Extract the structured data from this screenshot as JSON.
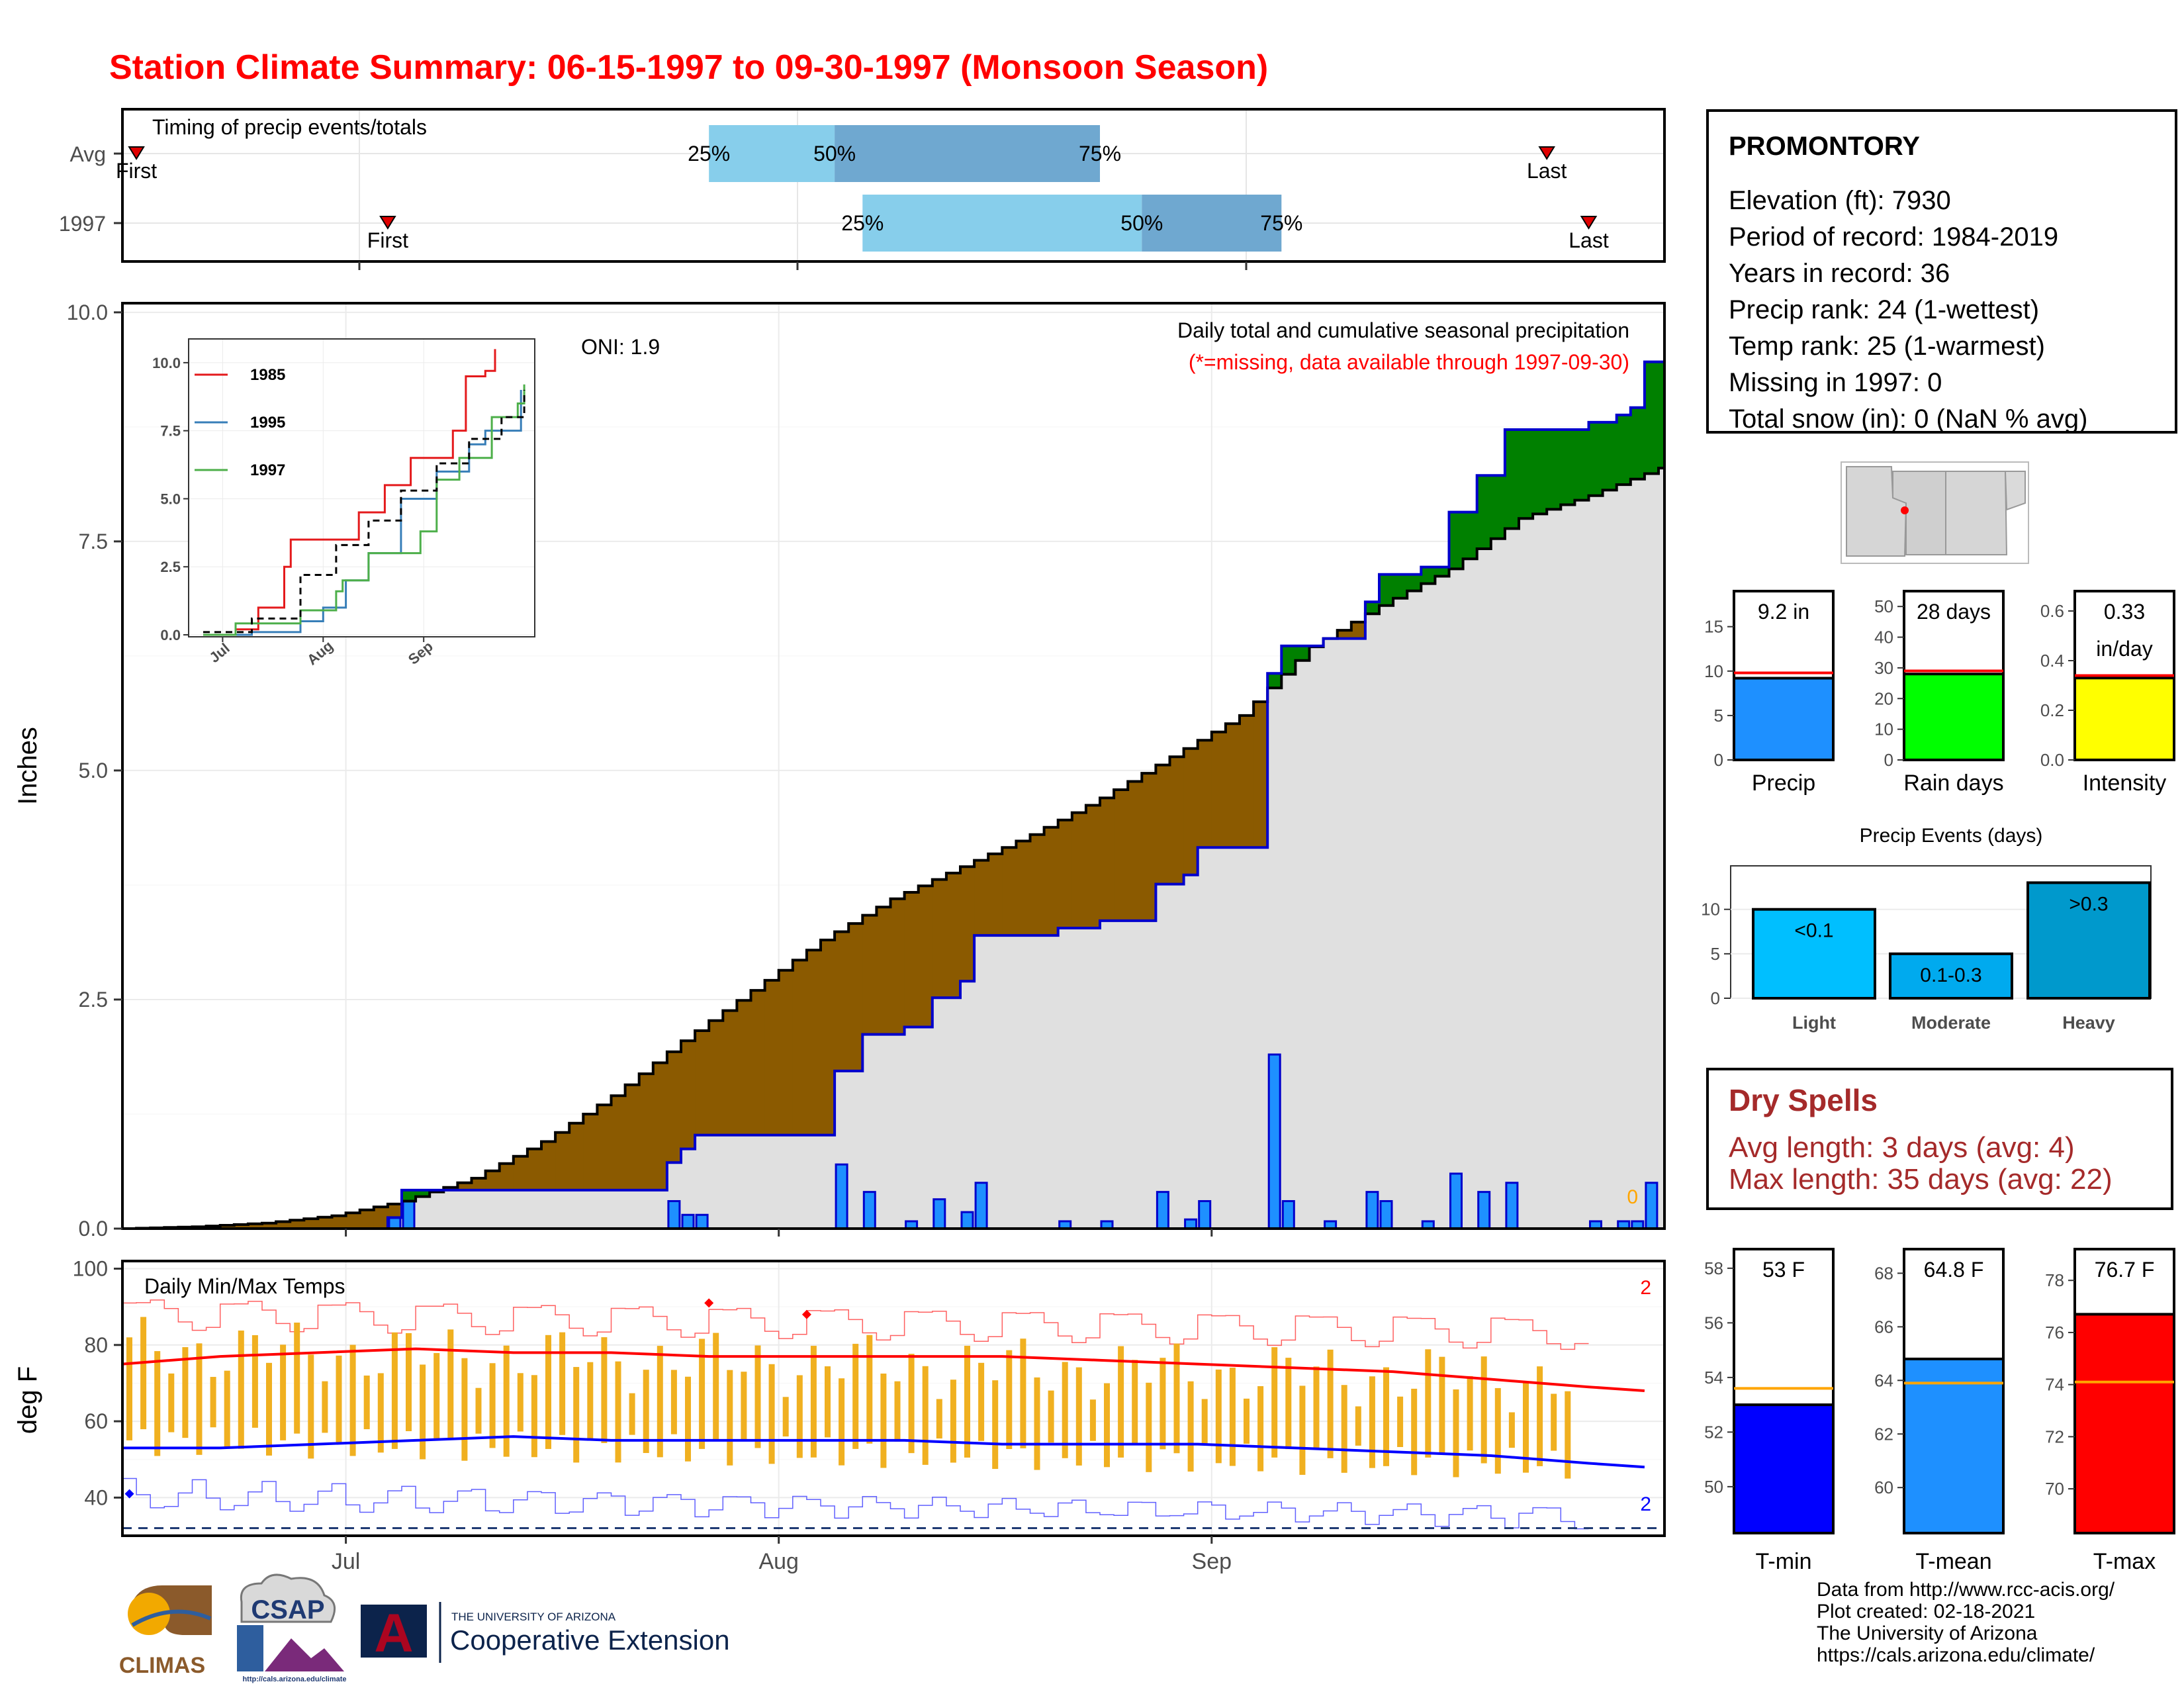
{
  "title": "Station Climate Summary: 06-15-1997 to 09-30-1997 (Monsoon Season)",
  "timing": {
    "label": "Timing of precip events/totals",
    "rows": [
      "Avg",
      "1997"
    ],
    "first_label": "First",
    "last_label": "Last",
    "pct_labels": [
      "25%",
      "50%",
      "75%"
    ],
    "avg": {
      "first": "1997-06-16",
      "p25": "1997-07-27",
      "p50": "1997-08-05",
      "p75": "1997-08-24",
      "last": "1997-09-25"
    },
    "y1997": {
      "first": "1997-07-04",
      "p25": "1997-08-07",
      "p50": "1997-08-27",
      "p75": "1997-09-06",
      "last": "1997-09-28"
    }
  },
  "precip_panel": {
    "ylabel": "Inches",
    "yticks": [
      "0.0",
      "2.5",
      "5.0",
      "7.5",
      "10.0"
    ],
    "oni": "ONI: 1.9",
    "subtitle": "Daily total and cumulative seasonal precipitation",
    "note": "(*=missing, data available through 1997-09-30)",
    "missing_count": "0"
  },
  "temp_panel": {
    "label": "Daily Min/Max Temps",
    "ylabel": "deg F",
    "yticks": [
      "40",
      "60",
      "80",
      "100"
    ],
    "record_high_count": "2",
    "record_low_count": "2"
  },
  "xaxis": {
    "ticks": [
      "Jul",
      "Aug",
      "Sep"
    ]
  },
  "inset": {
    "yticks": [
      "0.0",
      "2.5",
      "5.0",
      "7.5",
      "10.0"
    ],
    "xticks": [
      "Jul",
      "Aug",
      "Sep"
    ],
    "legend": [
      "1985",
      "1995",
      "1997"
    ]
  },
  "station": {
    "name": "PROMONTORY",
    "lines": [
      "Elevation (ft): 7930",
      "Period of record: 1984-2019",
      "Years in record: 36",
      "Precip rank: 24 (1-wettest)",
      "Temp rank: 25 (1-warmest)",
      "Missing in 1997: 0",
      "Total snow (in): 0 (NaN % avg)"
    ]
  },
  "summary_bars": [
    {
      "name": "Precip",
      "label_lines": [
        "9.2 in"
      ],
      "yticks": [
        "0",
        "5",
        "10",
        "15"
      ]
    },
    {
      "name": "Rain days",
      "label_lines": [
        "28 days"
      ],
      "yticks": [
        "0",
        "10",
        "20",
        "30",
        "40",
        "50"
      ]
    },
    {
      "name": "Intensity",
      "label_lines": [
        "0.33",
        "in/day"
      ],
      "yticks": [
        "0.0",
        "0.2",
        "0.4",
        "0.6"
      ]
    }
  ],
  "events": {
    "title": "Precip Events (days)",
    "yticks": [
      "0",
      "5",
      "10"
    ],
    "categories": [
      "Light",
      "Moderate",
      "Heavy"
    ],
    "labels": [
      "<0.1",
      "0.1-0.3",
      ">0.3"
    ]
  },
  "dry_spells": {
    "title": "Dry Spells",
    "avg_line": "Avg length: 3 days (avg: 4)",
    "max_line": "Max length: 35 days (avg: 22)"
  },
  "temp_bars": [
    {
      "name": "T-min",
      "label": "53 F",
      "yticks": [
        "50",
        "52",
        "54",
        "56",
        "58"
      ]
    },
    {
      "name": "T-mean",
      "label": "64.8 F",
      "yticks": [
        "60",
        "62",
        "64",
        "66",
        "68"
      ]
    },
    {
      "name": "T-max",
      "label": "76.7 F",
      "yticks": [
        "70",
        "72",
        "74",
        "76",
        "78"
      ]
    }
  ],
  "credits": [
    "Data from http://www.rcc-acis.org/",
    "Plot created: 02-18-2021",
    "The University of Arizona",
    "https://cals.arizona.edu/climate/"
  ],
  "logos": {
    "climas": "CLIMAS",
    "csap": "CSAP",
    "csap_url": "http://cals.arizona.edu/climate",
    "ua_small": "THE UNIVERSITY OF ARIZONA",
    "ua_big": "Cooperative Extension",
    "ua_letter": "A"
  },
  "colors": {
    "title": "#ff0000",
    "deficit": "#8b5a00",
    "surplus": "#008000",
    "daily_bar": "#1e90ff",
    "avg_cum_fill": "#e0e0e0",
    "tmax": "#ff0000",
    "tmin": "#0000ff",
    "temp_bar": "#f0b020",
    "precip_bar": "#1e90ff",
    "raindays_bar": "#00ff00",
    "intensity_bar": "#ffff00",
    "events_light": "#00bfff",
    "events_moderate": "#00aaee",
    "events_heavy": "#0099cc",
    "dry_spell": "#a52a2a"
  },
  "chart_data": [
    {
      "type": "area",
      "title": "Daily total and cumulative seasonal precipitation",
      "ylabel": "Inches",
      "ylim": [
        0,
        10
      ],
      "start": "1997-06-15",
      "end": "1997-09-30",
      "daily_1997": [
        {
          "date": "1997-07-04",
          "value": 0.12
        },
        {
          "date": "1997-07-05",
          "value": 0.3
        },
        {
          "date": "1997-07-24",
          "value": 0.3
        },
        {
          "date": "1997-07-25",
          "value": 0.15
        },
        {
          "date": "1997-07-26",
          "value": 0.15
        },
        {
          "date": "1997-08-05",
          "value": 0.7
        },
        {
          "date": "1997-08-07",
          "value": 0.4
        },
        {
          "date": "1997-08-10",
          "value": 0.08
        },
        {
          "date": "1997-08-12",
          "value": 0.32
        },
        {
          "date": "1997-08-14",
          "value": 0.18
        },
        {
          "date": "1997-08-15",
          "value": 0.5
        },
        {
          "date": "1997-08-21",
          "value": 0.08
        },
        {
          "date": "1997-08-24",
          "value": 0.08
        },
        {
          "date": "1997-08-28",
          "value": 0.4
        },
        {
          "date": "1997-08-30",
          "value": 0.1
        },
        {
          "date": "1997-08-31",
          "value": 0.3
        },
        {
          "date": "1997-09-05",
          "value": 1.9
        },
        {
          "date": "1997-09-06",
          "value": 0.3
        },
        {
          "date": "1997-09-09",
          "value": 0.08
        },
        {
          "date": "1997-09-12",
          "value": 0.4
        },
        {
          "date": "1997-09-13",
          "value": 0.3
        },
        {
          "date": "1997-09-16",
          "value": 0.08
        },
        {
          "date": "1997-09-18",
          "value": 0.6
        },
        {
          "date": "1997-09-20",
          "value": 0.4
        },
        {
          "date": "1997-09-22",
          "value": 0.5
        },
        {
          "date": "1997-09-28",
          "value": 0.08
        },
        {
          "date": "1997-09-30",
          "value": 0.08
        },
        {
          "date": "1997-10-01",
          "value": 0.08
        },
        {
          "date": "1997-10-02",
          "value": 0.5
        }
      ],
      "avg_cumulative": [
        {
          "date": "1997-06-15",
          "value": 0.0
        },
        {
          "date": "1997-06-20",
          "value": 0.02
        },
        {
          "date": "1997-06-25",
          "value": 0.06
        },
        {
          "date": "1997-06-30",
          "value": 0.14
        },
        {
          "date": "1997-07-05",
          "value": 0.3
        },
        {
          "date": "1997-07-10",
          "value": 0.55
        },
        {
          "date": "1997-07-15",
          "value": 0.95
        },
        {
          "date": "1997-07-20",
          "value": 1.45
        },
        {
          "date": "1997-07-25",
          "value": 2.05
        },
        {
          "date": "1997-07-30",
          "value": 2.6
        },
        {
          "date": "1997-08-04",
          "value": 3.15
        },
        {
          "date": "1997-08-09",
          "value": 3.6
        },
        {
          "date": "1997-08-14",
          "value": 3.95
        },
        {
          "date": "1997-08-19",
          "value": 4.3
        },
        {
          "date": "1997-08-24",
          "value": 4.7
        },
        {
          "date": "1997-08-29",
          "value": 5.15
        },
        {
          "date": "1997-09-03",
          "value": 5.6
        },
        {
          "date": "1997-09-08",
          "value": 6.35
        },
        {
          "date": "1997-09-13",
          "value": 6.8
        },
        {
          "date": "1997-09-18",
          "value": 7.2
        },
        {
          "date": "1997-09-23",
          "value": 7.75
        },
        {
          "date": "1997-09-28",
          "value": 8.0
        },
        {
          "date": "1997-10-03",
          "value": 8.3
        },
        {
          "date": "1997-10-08",
          "value": 8.55
        },
        {
          "date": "1997-10-13",
          "value": 8.75
        }
      ],
      "missing": 0
    },
    {
      "type": "line",
      "title": "",
      "xticks": [
        "Jul",
        "Aug",
        "Sep"
      ],
      "ylim": [
        0,
        10
      ],
      "series": [
        {
          "name": "1985",
          "color": "#e41a1c",
          "points": [
            [
              "1997-06-25",
              0.0
            ],
            [
              "1997-07-05",
              0.2
            ],
            [
              "1997-07-12",
              1.0
            ],
            [
              "1997-07-20",
              2.5
            ],
            [
              "1997-07-22",
              3.5
            ],
            [
              "1997-08-05",
              3.5
            ],
            [
              "1997-08-12",
              4.5
            ],
            [
              "1997-08-20",
              5.5
            ],
            [
              "1997-08-28",
              6.5
            ],
            [
              "1997-09-10",
              7.5
            ],
            [
              "1997-09-14",
              9.5
            ],
            [
              "1997-09-20",
              9.7
            ],
            [
              "1997-09-23",
              10.5
            ]
          ]
        },
        {
          "name": "1995",
          "color": "#377eb8",
          "points": [
            [
              "1997-06-25",
              0.0
            ],
            [
              "1997-07-10",
              0.1
            ],
            [
              "1997-07-25",
              0.5
            ],
            [
              "1997-08-01",
              1.0
            ],
            [
              "1997-08-08",
              2.0
            ],
            [
              "1997-08-15",
              3.0
            ],
            [
              "1997-08-25",
              5.0
            ],
            [
              "1997-09-05",
              6.0
            ],
            [
              "1997-09-15",
              7.0
            ],
            [
              "1997-09-20",
              7.5
            ],
            [
              "1997-09-30",
              7.5
            ],
            [
              "1997-10-01",
              9.0
            ]
          ]
        },
        {
          "name": "1997",
          "color": "#4daf4a",
          "points": [
            [
              "1997-06-25",
              0.0
            ],
            [
              "1997-07-05",
              0.42
            ],
            [
              "1997-07-25",
              0.9
            ],
            [
              "1997-08-05",
              1.6
            ],
            [
              "1997-08-07",
              2.0
            ],
            [
              "1997-08-15",
              3.0
            ],
            [
              "1997-08-31",
              3.8
            ],
            [
              "1997-09-05",
              5.7
            ],
            [
              "1997-09-12",
              6.5
            ],
            [
              "1997-09-22",
              8.0
            ],
            [
              "1997-09-30",
              8.5
            ],
            [
              "1997-10-02",
              9.2
            ]
          ]
        },
        {
          "name": "",
          "color": "#000000",
          "dashed": true,
          "points": [
            [
              "1997-06-25",
              0.1
            ],
            [
              "1997-07-10",
              0.6
            ],
            [
              "1997-07-25",
              2.2
            ],
            [
              "1997-08-05",
              3.3
            ],
            [
              "1997-08-15",
              4.2
            ],
            [
              "1997-08-25",
              5.3
            ],
            [
              "1997-09-05",
              6.3
            ],
            [
              "1997-09-15",
              7.2
            ],
            [
              "1997-09-25",
              8.0
            ],
            [
              "1997-10-02",
              9.0
            ]
          ]
        }
      ]
    },
    {
      "type": "line",
      "title": "Daily Min/Max Temps",
      "ylabel": "deg F",
      "ylim": [
        30,
        102
      ],
      "series": [
        {
          "name": "",
          "color": "#ff0000",
          "points": [
            [
              "1997-06-15",
              75
            ],
            [
              "1997-06-22",
              77
            ],
            [
              "1997-06-29",
              78
            ],
            [
              "1997-07-06",
              79
            ],
            [
              "1997-07-13",
              78
            ],
            [
              "1997-07-20",
              78
            ],
            [
              "1997-07-27",
              77
            ],
            [
              "1997-08-03",
              77
            ],
            [
              "1997-08-10",
              77
            ],
            [
              "1997-08-17",
              77
            ],
            [
              "1997-08-24",
              76
            ],
            [
              "1997-08-31",
              75
            ],
            [
              "1997-09-07",
              74
            ],
            [
              "1997-09-14",
              73
            ],
            [
              "1997-09-21",
              71
            ],
            [
              "1997-09-28",
              69
            ],
            [
              "1997-10-02",
              68
            ]
          ]
        },
        {
          "name": "",
          "color": "#0000ff",
          "points": [
            [
              "1997-06-15",
              53
            ],
            [
              "1997-06-22",
              53
            ],
            [
              "1997-06-29",
              54
            ],
            [
              "1997-07-06",
              55
            ],
            [
              "1997-07-13",
              56
            ],
            [
              "1997-07-20",
              55
            ],
            [
              "1997-07-27",
              55
            ],
            [
              "1997-08-03",
              55
            ],
            [
              "1997-08-10",
              55
            ],
            [
              "1997-08-17",
              54
            ],
            [
              "1997-08-24",
              54
            ],
            [
              "1997-08-31",
              54
            ],
            [
              "1997-09-07",
              53
            ],
            [
              "1997-09-14",
              52
            ],
            [
              "1997-09-21",
              51
            ],
            [
              "1997-09-28",
              49
            ],
            [
              "1997-10-02",
              48
            ]
          ]
        }
      ],
      "reference_line": 32
    },
    {
      "type": "bar",
      "categories": [
        "Precip",
        "Rain days",
        "Intensity"
      ],
      "values": [
        9.2,
        28,
        0.33
      ],
      "averages": [
        9.8,
        29,
        0.34
      ],
      "ylims": [
        [
          0,
          19
        ],
        [
          0,
          55
        ],
        [
          0,
          0.68
        ]
      ]
    },
    {
      "type": "bar",
      "title": "Precip Events (days)",
      "categories": [
        "Light",
        "Moderate",
        "Heavy"
      ],
      "values": [
        10,
        5,
        13
      ],
      "ylim": [
        0,
        14
      ]
    },
    {
      "type": "bar",
      "categories": [
        "T-min",
        "T-mean",
        "T-max"
      ],
      "values": [
        53,
        64.8,
        76.7
      ],
      "averages": [
        53.6,
        63.9,
        74.1
      ],
      "ylims": [
        [
          48.3,
          58.7
        ],
        [
          58.3,
          68.9
        ],
        [
          68.3,
          79.2
        ]
      ]
    }
  ]
}
